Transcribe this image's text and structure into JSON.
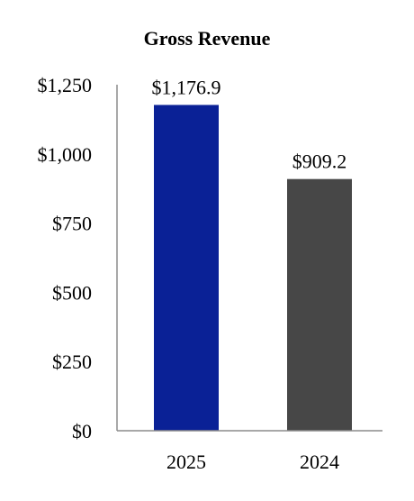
{
  "chart_data": {
    "type": "bar",
    "title": "Gross Revenue",
    "xlabel": "",
    "ylabel": "",
    "categories": [
      "2025",
      "2024"
    ],
    "series": [
      {
        "values": [
          1176.9,
          909.2
        ],
        "colors": [
          "#0a2196",
          "#474747"
        ]
      }
    ],
    "data_labels": [
      "$1,176.9",
      "$909.2"
    ],
    "ylim": [
      0,
      1250
    ],
    "yticks": [
      0,
      250,
      500,
      750,
      1000,
      1250
    ],
    "ytick_labels": [
      "$0",
      "$250",
      "$500",
      "$750",
      "$1,000",
      "$1,250"
    ],
    "grid": false,
    "legend": "none"
  }
}
